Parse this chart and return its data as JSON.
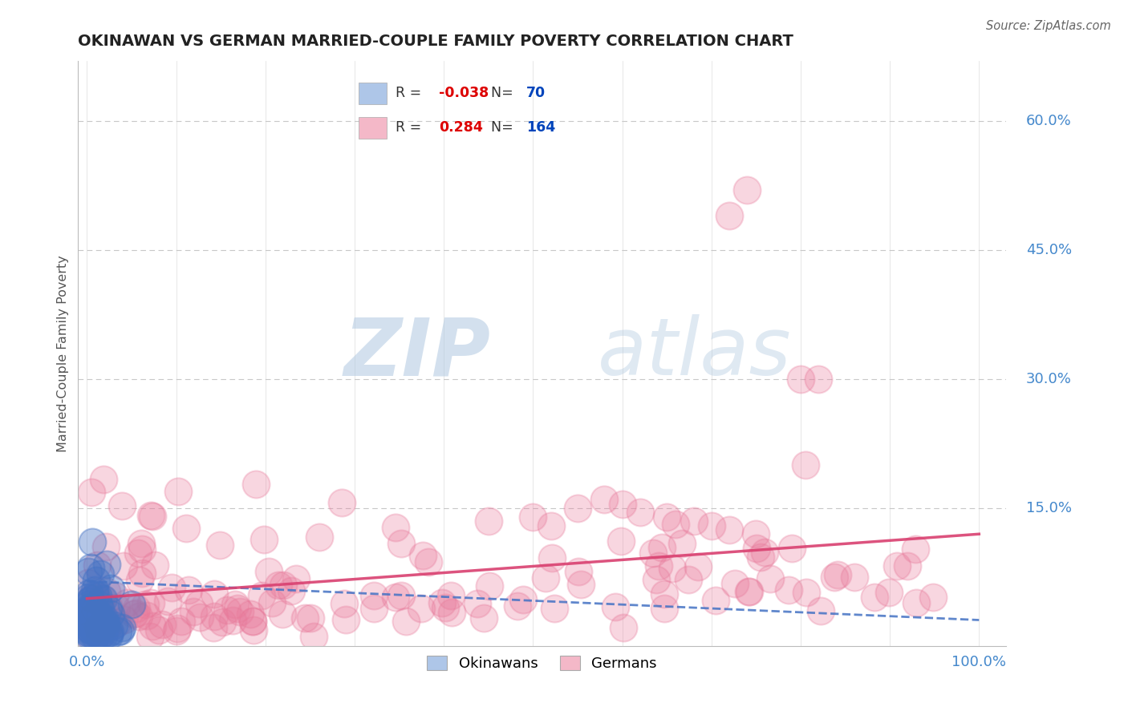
{
  "title": "OKINAWAN VS GERMAN MARRIED-COUPLE FAMILY POVERTY CORRELATION CHART",
  "source": "Source: ZipAtlas.com",
  "ylabel": "Married-Couple Family Poverty",
  "ytick_labels": [
    "15.0%",
    "30.0%",
    "45.0%",
    "60.0%"
  ],
  "ytick_values": [
    0.15,
    0.3,
    0.45,
    0.6
  ],
  "okinawan_color": "#4472c4",
  "german_color": "#e8799a",
  "okinawan_R": -0.038,
  "okinawan_N": 70,
  "german_R": 0.284,
  "german_N": 164,
  "background_color": "#ffffff",
  "grid_color": "#c8c8c8",
  "watermark_text": "ZIPatlas",
  "watermark_color": "#c8d8e8",
  "title_color": "#222222",
  "axis_label_color": "#555555",
  "tick_color": "#4488cc",
  "legend_R_neg_color": "#dd0000",
  "legend_R_pos_color": "#dd0000",
  "legend_N_color": "#0044bb",
  "okin_legend_box_color": "#aec6e8",
  "ger_legend_box_color": "#f4b8c8"
}
